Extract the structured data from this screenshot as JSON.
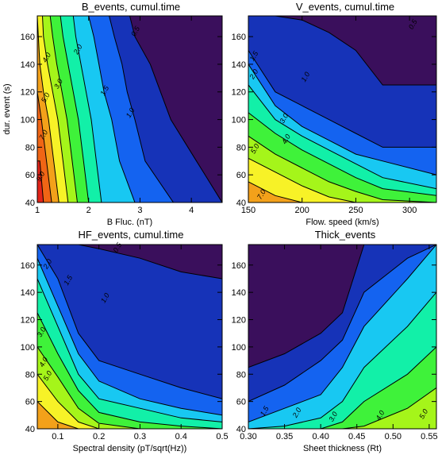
{
  "palette": [
    "#3a0f5c",
    "#1633b8",
    "#1463f0",
    "#18c8f2",
    "#12f0a8",
    "#3ff23a",
    "#a5f51a",
    "#f7f227",
    "#f3a11a",
    "#f06515",
    "#e22419"
  ],
  "chart_data": [
    {
      "type": "heatmap",
      "title": "B_events, cumul.time",
      "xlabel": "B Fluc. (nT)",
      "ylabel": "dur. event (s)",
      "xlim": [
        1,
        4.6
      ],
      "ylim": [
        40,
        175
      ],
      "xticks": [
        "1",
        "2",
        "3",
        "4"
      ],
      "xtick_values": [
        1,
        2,
        3,
        4
      ],
      "yticks": [
        "40",
        "60",
        "80",
        "100",
        "120",
        "140",
        "160"
      ],
      "ytick_values": [
        40,
        60,
        80,
        100,
        120,
        140,
        160
      ],
      "contours": [
        {
          "level": 0.5,
          "x": [
            2.8,
            2.9,
            3.2,
            3.4,
            3.6,
            4.1,
            4.6
          ]
        },
        {
          "level": 1.0,
          "x": [
            2.4,
            2.5,
            2.65,
            2.75,
            2.9,
            3.1,
            3.65
          ]
        },
        {
          "level": 1.5,
          "x": [
            2.0,
            2.1,
            2.2,
            2.3,
            2.45,
            2.6,
            2.9
          ]
        },
        {
          "level": 2.0,
          "x": [
            1.7,
            1.75,
            1.85,
            1.95,
            2.05,
            2.15,
            2.25
          ]
        },
        {
          "level": 2.5,
          "x": [
            1.45,
            1.5,
            1.6,
            1.7,
            1.8,
            1.9,
            2.0
          ]
        },
        {
          "level": 3.0,
          "x": [
            1.25,
            1.3,
            1.38,
            1.48,
            1.58,
            1.68,
            1.78
          ]
        },
        {
          "level": 4.0,
          "x": [
            1.1,
            1.12,
            1.2,
            1.3,
            1.4,
            1.5,
            1.6
          ]
        },
        {
          "level": 5.0,
          "x": [
            1.0,
            1.02,
            1.05,
            1.12,
            1.22,
            1.32,
            1.42
          ]
        },
        {
          "level": 7.0,
          "x": [
            null,
            null,
            null,
            1.0,
            1.08,
            1.18,
            1.28
          ]
        },
        {
          "level": 9.0,
          "x": [
            null,
            null,
            null,
            null,
            null,
            1.05,
            1.12
          ]
        }
      ],
      "contour_y": [
        175,
        160,
        140,
        120,
        100,
        70,
        40
      ],
      "labels": [
        {
          "text": "0.5",
          "x": 2.95,
          "y": 163
        },
        {
          "text": "1.0",
          "x": 2.85,
          "y": 104
        },
        {
          "text": "1.5",
          "x": 2.35,
          "y": 120
        },
        {
          "text": "2.0",
          "x": 1.83,
          "y": 150
        },
        {
          "text": "3.0",
          "x": 1.45,
          "y": 125
        },
        {
          "text": "4.0",
          "x": 1.22,
          "y": 144
        },
        {
          "text": "5.0",
          "x": 1.2,
          "y": 115
        },
        {
          "text": "7.0",
          "x": 1.16,
          "y": 88
        },
        {
          "text": "9.0",
          "x": 1.1,
          "y": 58
        }
      ]
    },
    {
      "type": "heatmap",
      "title": "V_events, cumul.time",
      "xlabel": "Flow. speed (km/s)",
      "ylabel": "",
      "xlim": [
        150,
        325
      ],
      "ylim": [
        40,
        175
      ],
      "xticks": [
        "150",
        "200",
        "250",
        "300"
      ],
      "xtick_values": [
        150,
        200,
        250,
        300
      ],
      "yticks": [
        "40",
        "60",
        "80",
        "100",
        "120",
        "140",
        "160"
      ],
      "ytick_values": [
        40,
        60,
        80,
        100,
        120,
        140,
        160
      ],
      "contours_y": [
        {
          "level": 0.5,
          "y": [
            175,
            175,
            172,
            163,
            150,
            125,
            125
          ]
        },
        {
          "level": 1.0,
          "y": [
            150,
            120,
            110,
            100,
            90,
            80,
            80
          ]
        },
        {
          "level": 1.5,
          "y": [
            140,
            110,
            95,
            85,
            75,
            70,
            60
          ]
        },
        {
          "level": 2.0,
          "y": [
            125,
            100,
            88,
            78,
            68,
            58,
            50
          ]
        },
        {
          "level": 3.0,
          "y": [
            105,
            90,
            78,
            68,
            58,
            50,
            45
          ]
        },
        {
          "level": 4.0,
          "y": [
            88,
            75,
            65,
            55,
            48,
            42,
            40
          ]
        },
        {
          "level": 5.0,
          "y": [
            72,
            62,
            52,
            44,
            40,
            40,
            40
          ]
        },
        {
          "level": 7.0,
          "y": [
            55,
            45,
            40,
            null,
            null,
            null,
            null
          ]
        },
        {
          "level": 9.0,
          "y": [
            45,
            null,
            null,
            null,
            null,
            null,
            null
          ]
        }
      ],
      "contour_x": [
        150,
        175,
        200,
        225,
        250,
        275,
        325
      ],
      "labels": [
        {
          "text": "0.5",
          "x": 305,
          "y": 168
        },
        {
          "text": "1.0",
          "x": 205,
          "y": 130
        },
        {
          "text": "1.5",
          "x": 157,
          "y": 145
        },
        {
          "text": "2.0",
          "x": 157,
          "y": 132
        },
        {
          "text": "3.0",
          "x": 185,
          "y": 100
        },
        {
          "text": "4.0",
          "x": 187,
          "y": 85
        },
        {
          "text": "5.0",
          "x": 158,
          "y": 78
        },
        {
          "text": "7.0",
          "x": 164,
          "y": 45
        }
      ]
    },
    {
      "type": "heatmap",
      "title": "HF_events, cumul.time",
      "xlabel": "Spectral density (pT/sqrt(Hz))",
      "ylabel": "",
      "xlim": [
        0.05,
        0.5
      ],
      "ylim": [
        40,
        175
      ],
      "xticks": [
        "0.1",
        "0.2",
        "0.3",
        "0.4",
        "0.5"
      ],
      "xtick_values": [
        0.1,
        0.2,
        0.3,
        0.4,
        0.5
      ],
      "yticks": [
        "40",
        "60",
        "80",
        "100",
        "120",
        "140",
        "160"
      ],
      "ytick_values": [
        40,
        60,
        80,
        100,
        120,
        140,
        160
      ],
      "contours_y": [
        {
          "level": 0.5,
          "y": [
            175,
            175,
            175,
            172,
            165,
            155,
            150
          ]
        },
        {
          "level": 1.0,
          "y": [
            175,
            150,
            110,
            90,
            80,
            70,
            62
          ]
        },
        {
          "level": 1.5,
          "y": [
            165,
            130,
            95,
            75,
            62,
            55,
            50
          ]
        },
        {
          "level": 2.0,
          "y": [
            150,
            115,
            80,
            62,
            55,
            48,
            45
          ]
        },
        {
          "level": 3.0,
          "y": [
            125,
            95,
            68,
            52,
            45,
            42,
            40
          ]
        },
        {
          "level": 4.0,
          "y": [
            100,
            78,
            55,
            44,
            40,
            40,
            40
          ]
        },
        {
          "level": 5.0,
          "y": [
            80,
            60,
            45,
            40,
            40,
            40,
            40
          ]
        },
        {
          "level": 7.0,
          "y": [
            60,
            45,
            40,
            null,
            null,
            null,
            null
          ]
        }
      ],
      "contour_x": [
        0.05,
        0.1,
        0.15,
        0.2,
        0.3,
        0.4,
        0.5
      ],
      "labels": [
        {
          "text": "0.5",
          "x": 0.25,
          "y": 172
        },
        {
          "text": "1.0",
          "x": 0.22,
          "y": 135
        },
        {
          "text": "1.5",
          "x": 0.13,
          "y": 148
        },
        {
          "text": "2.0",
          "x": 0.08,
          "y": 160
        },
        {
          "text": "3.0",
          "x": 0.065,
          "y": 110
        },
        {
          "text": "4.0",
          "x": 0.07,
          "y": 88
        },
        {
          "text": "5.0",
          "x": 0.08,
          "y": 78
        }
      ]
    },
    {
      "type": "heatmap",
      "title": "Thick_events",
      "xlabel": "Sheet thickness (Rt)",
      "ylabel": "",
      "xlim": [
        0.3,
        0.56
      ],
      "ylim": [
        40,
        175
      ],
      "xticks": [
        "0.30",
        "0.35",
        "0.40",
        "0.45",
        "0.50",
        "0.55"
      ],
      "xtick_values": [
        0.3,
        0.35,
        0.4,
        0.45,
        0.5,
        0.55
      ],
      "yticks": [
        "40",
        "60",
        "80",
        "100",
        "120",
        "140",
        "160"
      ],
      "ytick_values": [
        40,
        60,
        80,
        100,
        120,
        140,
        160
      ],
      "contours_y": [
        {
          "level": 1.0,
          "y": [
            85,
            95,
            110,
            125,
            175,
            175,
            175
          ]
        },
        {
          "level": 1.5,
          "y": [
            60,
            72,
            90,
            105,
            140,
            165,
            175
          ]
        },
        {
          "level": 2.0,
          "y": [
            45,
            55,
            65,
            85,
            115,
            150,
            175
          ]
        },
        {
          "level": 3.0,
          "y": [
            40,
            42,
            48,
            60,
            85,
            115,
            140
          ]
        },
        {
          "level": 4.0,
          "y": [
            40,
            40,
            40,
            45,
            60,
            80,
            100
          ]
        },
        {
          "level": 5.0,
          "y": [
            40,
            40,
            40,
            40,
            42,
            55,
            70
          ]
        }
      ],
      "contour_x": [
        0.3,
        0.35,
        0.4,
        0.43,
        0.46,
        0.52,
        0.56
      ],
      "labels": [
        {
          "text": "1.5",
          "x": 0.325,
          "y": 52
        },
        {
          "text": "2.0",
          "x": 0.37,
          "y": 51
        },
        {
          "text": "3.0",
          "x": 0.42,
          "y": 48
        },
        {
          "text": "4.0",
          "x": 0.485,
          "y": 49
        },
        {
          "text": "5.0",
          "x": 0.545,
          "y": 50
        }
      ]
    }
  ]
}
